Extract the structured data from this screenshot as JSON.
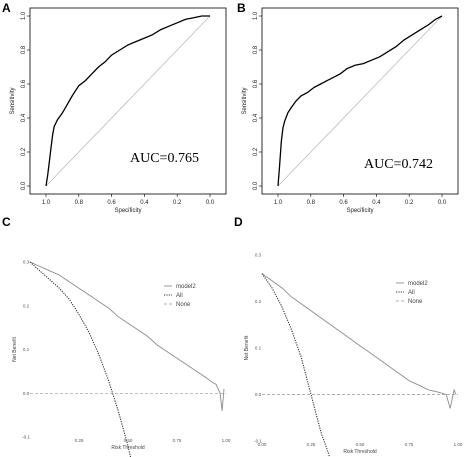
{
  "panels": {
    "A": {
      "letter": "A"
    },
    "B": {
      "letter": "B"
    },
    "C": {
      "letter": "C"
    },
    "D": {
      "letter": "D"
    }
  },
  "chart_data": [
    {
      "panel": "A",
      "type": "line",
      "xlabel": "Specificity",
      "ylabel": "Sensitivity",
      "xlim": [
        1.0,
        0.0
      ],
      "ylim": [
        0.0,
        1.0
      ],
      "xticks": [
        "1.0",
        "0.8",
        "0.6",
        "0.4",
        "0.2",
        "0.0"
      ],
      "xtick_values": [
        1.0,
        0.8,
        0.6,
        0.4,
        0.2,
        0.0
      ],
      "yticks": [
        "0.0",
        "0.2",
        "0.4",
        "0.6",
        "0.8",
        "1.0"
      ],
      "ytick_values": [
        0.0,
        0.2,
        0.4,
        0.6,
        0.8,
        1.0
      ],
      "annotation": "AUC=0.765",
      "reference_line": [
        [
          1.0,
          0.0
        ],
        [
          0.0,
          1.0
        ]
      ],
      "series": [
        {
          "x": [
            1.0,
            0.99,
            0.98,
            0.97,
            0.96,
            0.95,
            0.93,
            0.9,
            0.87,
            0.84,
            0.8,
            0.76,
            0.72,
            0.68,
            0.64,
            0.6,
            0.55,
            0.5,
            0.45,
            0.4,
            0.35,
            0.3,
            0.25,
            0.2,
            0.15,
            0.1,
            0.05,
            0.0
          ],
          "y": [
            0.0,
            0.06,
            0.14,
            0.22,
            0.3,
            0.35,
            0.39,
            0.43,
            0.48,
            0.53,
            0.59,
            0.62,
            0.66,
            0.7,
            0.73,
            0.77,
            0.8,
            0.83,
            0.85,
            0.87,
            0.89,
            0.92,
            0.94,
            0.96,
            0.98,
            0.99,
            1.0,
            1.0
          ]
        }
      ]
    },
    {
      "panel": "B",
      "type": "line",
      "xlabel": "Specificity",
      "ylabel": "Sensitivity",
      "xlim": [
        1.0,
        0.0
      ],
      "ylim": [
        0.0,
        1.0
      ],
      "xticks": [
        "1.0",
        "0.8",
        "0.6",
        "0.4",
        "0.2",
        "0.0"
      ],
      "xtick_values": [
        1.0,
        0.8,
        0.6,
        0.4,
        0.2,
        0.0
      ],
      "yticks": [
        "0.0",
        "0.2",
        "0.4",
        "0.6",
        "0.8",
        "1.0"
      ],
      "ytick_values": [
        0.0,
        0.2,
        0.4,
        0.6,
        0.8,
        1.0
      ],
      "annotation": "AUC=0.742",
      "reference_line": [
        [
          1.0,
          0.0
        ],
        [
          0.0,
          1.0
        ]
      ],
      "series": [
        {
          "x": [
            1.0,
            0.99,
            0.98,
            0.97,
            0.96,
            0.94,
            0.92,
            0.89,
            0.86,
            0.82,
            0.78,
            0.74,
            0.7,
            0.66,
            0.62,
            0.58,
            0.53,
            0.48,
            0.43,
            0.38,
            0.33,
            0.28,
            0.23,
            0.18,
            0.13,
            0.08,
            0.04,
            0.0
          ],
          "y": [
            0.0,
            0.12,
            0.26,
            0.34,
            0.38,
            0.43,
            0.46,
            0.5,
            0.53,
            0.55,
            0.58,
            0.6,
            0.62,
            0.64,
            0.66,
            0.69,
            0.71,
            0.72,
            0.74,
            0.76,
            0.79,
            0.82,
            0.86,
            0.89,
            0.92,
            0.95,
            0.98,
            1.0
          ]
        }
      ]
    },
    {
      "panel": "C",
      "type": "line",
      "xlabel": "Risk Threshold",
      "ylabel": "Net Benefit",
      "xlim": [
        0.0,
        1.0
      ],
      "ylim": [
        -0.1,
        0.3
      ],
      "xticks": [
        "0.25",
        "0.50",
        "0.75",
        "1.00"
      ],
      "xtick_values": [
        0.25,
        0.5,
        0.75,
        1.0
      ],
      "yticks": [
        "-0.1",
        "0.0",
        "0.1",
        "0.2",
        "0.3"
      ],
      "ytick_values": [
        -0.1,
        0.0,
        0.1,
        0.2,
        0.3
      ],
      "legend": [
        "model2",
        "All",
        "None"
      ],
      "legend_position": "right",
      "series": [
        {
          "name": "model2",
          "style": "solid",
          "x": [
            0.0,
            0.05,
            0.1,
            0.15,
            0.2,
            0.25,
            0.3,
            0.35,
            0.4,
            0.45,
            0.5,
            0.55,
            0.6,
            0.65,
            0.7,
            0.75,
            0.8,
            0.85,
            0.9,
            0.93,
            0.95,
            0.97,
            0.98,
            0.99
          ],
          "y": [
            0.3,
            0.29,
            0.28,
            0.27,
            0.255,
            0.24,
            0.225,
            0.21,
            0.195,
            0.175,
            0.16,
            0.145,
            0.13,
            0.11,
            0.095,
            0.08,
            0.065,
            0.05,
            0.035,
            0.025,
            0.02,
            0.0,
            -0.04,
            0.01
          ]
        },
        {
          "name": "All",
          "style": "dotted",
          "x": [
            0.0,
            0.05,
            0.1,
            0.15,
            0.2,
            0.25,
            0.3,
            0.35,
            0.4,
            0.45,
            0.5,
            0.52
          ],
          "y": [
            0.3,
            0.28,
            0.26,
            0.24,
            0.215,
            0.18,
            0.14,
            0.09,
            0.03,
            -0.04,
            -0.12,
            -0.16
          ]
        },
        {
          "name": "None",
          "style": "dashed",
          "x": [
            0.0,
            1.0
          ],
          "y": [
            0.0,
            0.0
          ]
        }
      ]
    },
    {
      "panel": "D",
      "type": "line",
      "xlabel": "Risk Threshold",
      "ylabel": "Net Benefit",
      "xlim": [
        0.0,
        1.0
      ],
      "ylim": [
        -0.1,
        0.3
      ],
      "xticks": [
        "0.00",
        "0.25",
        "0.50",
        "0.75",
        "1.00"
      ],
      "xtick_values": [
        0.0,
        0.25,
        0.5,
        0.75,
        1.0
      ],
      "yticks": [
        "-0.1",
        "0.0",
        "0.1",
        "0.2",
        "0.3"
      ],
      "ytick_values": [
        -0.1,
        0.0,
        0.1,
        0.2,
        0.3
      ],
      "legend": [
        "model2",
        "All",
        "None"
      ],
      "legend_position": "right",
      "series": [
        {
          "name": "model2",
          "style": "solid",
          "x": [
            0.0,
            0.05,
            0.1,
            0.15,
            0.2,
            0.25,
            0.3,
            0.35,
            0.4,
            0.45,
            0.5,
            0.55,
            0.6,
            0.65,
            0.7,
            0.75,
            0.8,
            0.85,
            0.9,
            0.94,
            0.96,
            0.98,
            0.99
          ],
          "y": [
            0.26,
            0.245,
            0.23,
            0.21,
            0.195,
            0.18,
            0.165,
            0.15,
            0.135,
            0.12,
            0.105,
            0.09,
            0.075,
            0.06,
            0.045,
            0.03,
            0.02,
            0.01,
            0.005,
            0.0,
            -0.03,
            0.01,
            0.0
          ]
        },
        {
          "name": "All",
          "style": "dotted",
          "x": [
            0.0,
            0.05,
            0.1,
            0.15,
            0.2,
            0.25,
            0.3,
            0.35
          ],
          "y": [
            0.26,
            0.23,
            0.19,
            0.14,
            0.08,
            0.0,
            -0.08,
            -0.14
          ]
        },
        {
          "name": "None",
          "style": "dashed",
          "x": [
            0.0,
            1.0
          ],
          "y": [
            0.0,
            0.0
          ]
        }
      ]
    }
  ]
}
